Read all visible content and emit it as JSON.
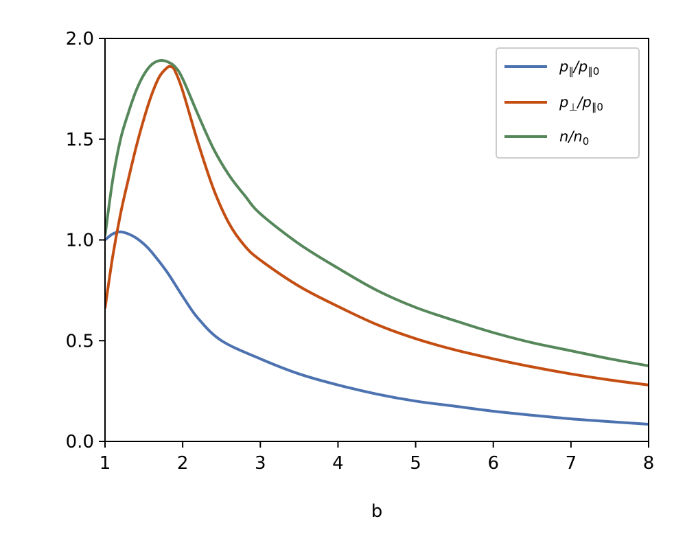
{
  "chart_data": {
    "type": "line",
    "xlabel": "b",
    "ylabel": "",
    "xlim": [
      1,
      8
    ],
    "ylim": [
      0,
      2
    ],
    "xticks": [
      1,
      2,
      3,
      4,
      5,
      6,
      7,
      8
    ],
    "xtick_labels": [
      "1",
      "2",
      "3",
      "4",
      "5",
      "6",
      "7",
      "8"
    ],
    "yticks": [
      0,
      0.5,
      1,
      1.5,
      2
    ],
    "ytick_labels": [
      "0.0",
      "0.5",
      "1.0",
      "1.5",
      "2.0"
    ],
    "grid": false,
    "legend_position": "top-right",
    "series": [
      {
        "name": "p‖/p‖0",
        "legend_parts": {
          "a": "p",
          "a_sub": "∥",
          "sep": "/",
          "b": "p",
          "b_sub": "∥0"
        },
        "color": "#4c72b0",
        "x": [
          1.0,
          1.1,
          1.2,
          1.3,
          1.4,
          1.5,
          1.6,
          1.8,
          2.0,
          2.2,
          2.5,
          3.0,
          3.5,
          4.0,
          4.5,
          5.0,
          5.5,
          6.0,
          6.5,
          7.0,
          7.5,
          8.0
        ],
        "y": [
          1.0,
          1.03,
          1.04,
          1.03,
          1.01,
          0.98,
          0.94,
          0.84,
          0.72,
          0.61,
          0.5,
          0.41,
          0.335,
          0.28,
          0.235,
          0.2,
          0.175,
          0.15,
          0.13,
          0.112,
          0.098,
          0.085
        ]
      },
      {
        "name": "p⊥/p‖0",
        "legend_parts": {
          "a": "p",
          "a_sub": "⊥",
          "sep": "/",
          "b": "p",
          "b_sub": "∥0"
        },
        "color": "#c44e12",
        "x": [
          1.0,
          1.1,
          1.2,
          1.3,
          1.4,
          1.5,
          1.6,
          1.7,
          1.8,
          1.85,
          1.9,
          2.0,
          2.2,
          2.4,
          2.6,
          2.8,
          3.0,
          3.5,
          4.0,
          4.5,
          5.0,
          5.5,
          6.0,
          6.5,
          7.0,
          7.5,
          8.0
        ],
        "y": [
          0.66,
          0.92,
          1.13,
          1.3,
          1.46,
          1.6,
          1.72,
          1.81,
          1.855,
          1.86,
          1.84,
          1.74,
          1.48,
          1.25,
          1.08,
          0.97,
          0.9,
          0.77,
          0.67,
          0.58,
          0.51,
          0.455,
          0.41,
          0.37,
          0.335,
          0.305,
          0.28
        ]
      },
      {
        "name": "n/n0",
        "legend_parts": {
          "a": "n",
          "a_sub": "",
          "sep": "/",
          "b": "n",
          "b_sub": "0"
        },
        "color": "#55875a",
        "x": [
          1.0,
          1.1,
          1.2,
          1.3,
          1.4,
          1.5,
          1.6,
          1.7,
          1.8,
          1.9,
          2.0,
          2.2,
          2.4,
          2.6,
          2.8,
          3.0,
          3.5,
          4.0,
          4.5,
          5.0,
          5.5,
          6.0,
          6.5,
          7.0,
          7.5,
          8.0
        ],
        "y": [
          1.02,
          1.3,
          1.5,
          1.63,
          1.74,
          1.82,
          1.87,
          1.89,
          1.885,
          1.86,
          1.8,
          1.62,
          1.45,
          1.32,
          1.22,
          1.13,
          0.98,
          0.86,
          0.75,
          0.665,
          0.6,
          0.54,
          0.49,
          0.45,
          0.41,
          0.375
        ]
      }
    ]
  }
}
